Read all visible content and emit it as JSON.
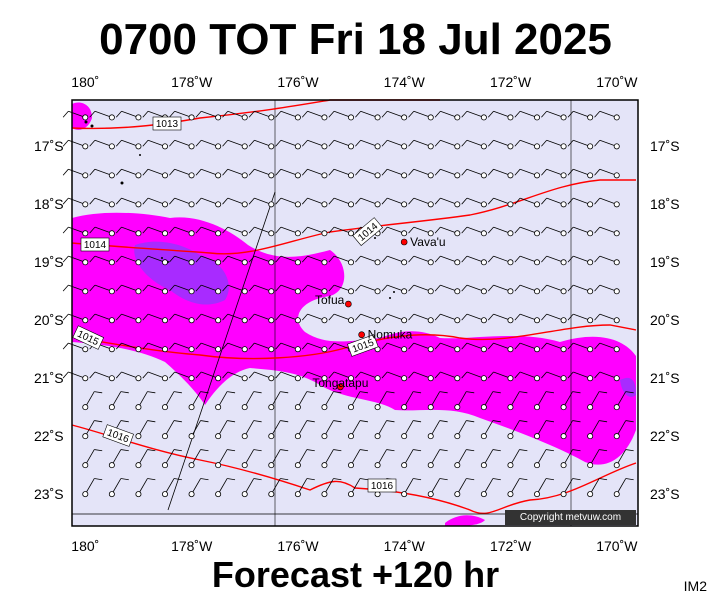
{
  "title": "0700 TOT Fri 18 Jul 2025",
  "footer": "Forecast +120 hr",
  "image_label": "IM2",
  "copyright": "Copyright metvuw.com",
  "colors": {
    "sea": "#e4e4f8",
    "rain_heavy": "#ff00ff",
    "rain_core": "#9933ff",
    "isobar": "#ff0000",
    "grid": "#000000",
    "barb": "#000000"
  },
  "map": {
    "lon_range": [
      -180.25,
      -169.6
    ],
    "lat_range": [
      -23.55,
      -16.2
    ],
    "lon_ticks": [
      {
        "value": -180,
        "label": "180˚"
      },
      {
        "value": -178,
        "label": "178˚W"
      },
      {
        "value": -176,
        "label": "176˚W"
      },
      {
        "value": -174,
        "label": "174˚W"
      },
      {
        "value": -172,
        "label": "172˚W"
      },
      {
        "value": -170,
        "label": "170˚W"
      }
    ],
    "lat_ticks": [
      {
        "value": -17,
        "label": "17˚S"
      },
      {
        "value": -18,
        "label": "18˚S"
      },
      {
        "value": -19,
        "label": "19˚S"
      },
      {
        "value": -20,
        "label": "20˚S"
      },
      {
        "value": -21,
        "label": "21˚S"
      },
      {
        "value": -22,
        "label": "22˚S"
      },
      {
        "value": -23,
        "label": "23˚S"
      }
    ],
    "isobar_labels": [
      {
        "text": "1013"
      },
      {
        "text": "1014"
      },
      {
        "text": "1014"
      },
      {
        "text": "1015"
      },
      {
        "text": "1015"
      },
      {
        "text": "1016"
      },
      {
        "text": "1016"
      }
    ],
    "places": [
      {
        "name": "Vava'u",
        "lon": -174.0,
        "lat": -18.65
      },
      {
        "name": "Tofua",
        "lon": -175.05,
        "lat": -19.72
      },
      {
        "name": "Nomuka",
        "lon": -174.8,
        "lat": -20.25
      },
      {
        "name": "Tongatapu",
        "lon": -175.2,
        "lat": -21.15
      }
    ]
  }
}
